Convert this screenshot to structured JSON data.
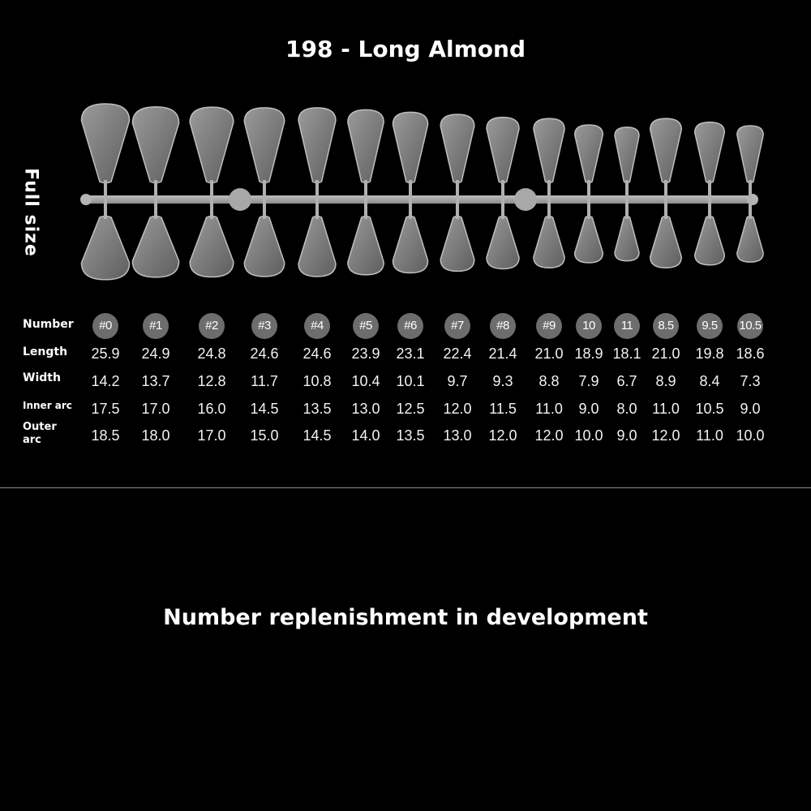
{
  "title": "198 - Long Almond",
  "side_label": "Full size",
  "labels": {
    "number": "Number",
    "length": "Length",
    "width": "Width",
    "inner_arc": "Inner arc",
    "outer_arc_line1": "Outer",
    "outer_arc_line2": "arc"
  },
  "sizes": [
    {
      "number": "#0",
      "length": "25.9",
      "width": "14.2",
      "inner": "17.5",
      "outer": "18.5"
    },
    {
      "number": "#1",
      "length": "24.9",
      "width": "13.7",
      "inner": "17.0",
      "outer": "18.0"
    },
    {
      "number": "#2",
      "length": "24.8",
      "width": "12.8",
      "inner": "16.0",
      "outer": "17.0"
    },
    {
      "number": "#3",
      "length": "24.6",
      "width": "11.7",
      "inner": "14.5",
      "outer": "15.0"
    },
    {
      "number": "#4",
      "length": "24.6",
      "width": "10.8",
      "inner": "13.5",
      "outer": "14.5"
    },
    {
      "number": "#5",
      "length": "23.9",
      "width": "10.4",
      "inner": "13.0",
      "outer": "14.0"
    },
    {
      "number": "#6",
      "length": "23.1",
      "width": "10.1",
      "inner": "12.5",
      "outer": "13.5"
    },
    {
      "number": "#7",
      "length": "22.4",
      "width": "9.7",
      "inner": "12.0",
      "outer": "13.0"
    },
    {
      "number": "#8",
      "length": "21.4",
      "width": "9.3",
      "inner": "11.5",
      "outer": "12.0"
    },
    {
      "number": "#9",
      "length": "21.0",
      "width": "8.8",
      "inner": "11.0",
      "outer": "12.0"
    },
    {
      "number": "10",
      "length": "18.9",
      "width": "7.9",
      "inner": "9.0",
      "outer": "10.0"
    },
    {
      "number": "11",
      "length": "18.1",
      "width": "6.7",
      "inner": "8.0",
      "outer": "9.0"
    },
    {
      "number": "8.5",
      "length": "21.0",
      "width": "8.9",
      "inner": "11.0",
      "outer": "12.0"
    },
    {
      "number": "9.5",
      "length": "19.8",
      "width": "8.4",
      "inner": "10.5",
      "outer": "11.0"
    },
    {
      "number": "10.5",
      "length": "18.6",
      "width": "7.3",
      "inner": "9.0",
      "outer": "10.0"
    }
  ],
  "footer": "Number replenishment in development"
}
